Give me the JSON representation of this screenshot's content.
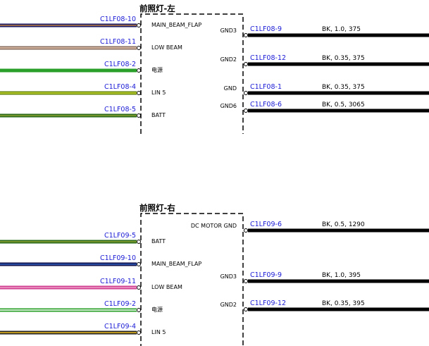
{
  "connectors": [
    {
      "title": "前照灯-左",
      "left": [
        {
          "wire": "C1LF08-10",
          "pin": "MAIN_BEAM_FLAP",
          "colors": [
            "#1a1a66",
            "#c08040"
          ]
        },
        {
          "wire": "C1LF08-11",
          "pin": "LOW BEAM",
          "colors": [
            "#8a7060",
            "#e8c8b0"
          ]
        },
        {
          "wire": "C1LF08-2",
          "pin": "电源",
          "colors": [
            "#2aa02a",
            "#2aa02a"
          ]
        },
        {
          "wire": "C1LF08-4",
          "pin": "LIN 5",
          "colors": [
            "#6a8a10",
            "#c8d830"
          ]
        },
        {
          "wire": "C1LF08-5",
          "pin": "BATT",
          "colors": [
            "#2a6a1a",
            "#8aa030"
          ]
        }
      ],
      "right": [
        {
          "pin": "GND3",
          "wire": "C1LF08-9",
          "spec": "BK, 1.0, 375"
        },
        {
          "pin": "GND2",
          "wire": "C1LF08-12",
          "spec": "BK, 0.35, 375"
        },
        {
          "pin": "GND",
          "wire": "C1LF08-1",
          "spec": "BK, 0.35, 375"
        },
        {
          "pin": "GND6",
          "wire": "C1LF08-6",
          "spec": "BK, 0.5, 3065"
        }
      ]
    },
    {
      "title": "前照灯-右",
      "left": [
        {
          "wire": "C1LF09-5",
          "pin": "BATT",
          "colors": [
            "#2a6a1a",
            "#8aa030"
          ]
        },
        {
          "wire": "C1LF09-10",
          "pin": "MAIN_BEAM_FLAP",
          "colors": [
            "#10104a",
            "#3060c0"
          ]
        },
        {
          "wire": "C1LF09-11",
          "pin": "LOW BEAM",
          "colors": [
            "#d04090",
            "#f0a0c8"
          ]
        },
        {
          "wire": "C1LF09-2",
          "pin": "电源",
          "colors": [
            "#2aa02a",
            "#ffffff"
          ]
        },
        {
          "wire": "C1LF09-4",
          "pin": "LIN 5",
          "colors": [
            "#222222",
            "#f0c020"
          ]
        }
      ],
      "right": [
        {
          "pin": "DC MOTOR GND",
          "wire": "C1LF09-6",
          "spec": "BK, 0.5, 1290"
        },
        {
          "pin": "GND3",
          "wire": "C1LF09-9",
          "spec": "BK, 1.0, 395"
        },
        {
          "pin": "GND2",
          "wire": "C1LF09-12",
          "spec": "BK, 0.35, 395"
        }
      ]
    }
  ]
}
